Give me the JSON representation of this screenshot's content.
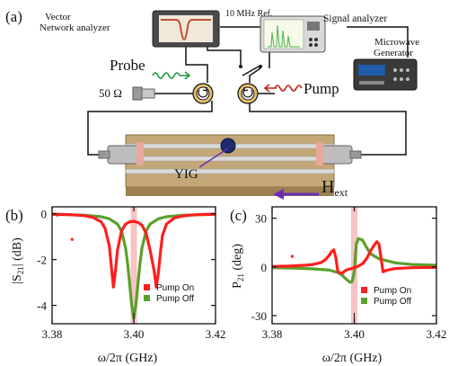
{
  "panel_a": {
    "label": "(a)",
    "vna_label_line1": "Vector",
    "vna_label_line2": "Network analyzer",
    "ref_label": "10 MHz Ref.",
    "sa_label": "Signal analyzer",
    "mw_label_line1": "Microwave",
    "mw_label_line2": "Generator",
    "probe_label": "Probe",
    "pump_label": "Pump",
    "load_label": "50 Ω",
    "yig_label": "YIG",
    "field_label": "H",
    "field_sub": "ext",
    "colors": {
      "probe": "#1a9a3a",
      "pump": "#c81e1e",
      "field_arrow": "#6a2fb0",
      "board": "#bfa57a"
    }
  },
  "chart_data": [
    {
      "type": "line",
      "panel": "(b)",
      "xlabel": "ω/2π  (GHz)",
      "ylabel_main": "|S",
      "ylabel_sub": "21",
      "ylabel_tail": "| (dB)",
      "xlim": [
        3.38,
        3.42
      ],
      "ylim": [
        -4.8,
        0.3
      ],
      "xticks": [
        3.38,
        3.4,
        3.42
      ],
      "xtick_labels": [
        "3.38",
        "3.40",
        "3.42"
      ],
      "yticks": [
        0,
        -2,
        -4
      ],
      "ytick_labels": [
        "0",
        "-2",
        "-4"
      ],
      "highlight_x": 3.4,
      "legend": [
        {
          "name": "Pump On",
          "color": "#ff1e1e"
        },
        {
          "name": "Pump Off",
          "color": "#5aa02c"
        }
      ],
      "series": [
        {
          "name": "Pump On",
          "color": "#ff1e1e",
          "x": [
            3.38,
            3.382,
            3.384,
            3.386,
            3.388,
            3.39,
            3.392,
            3.393,
            3.394,
            3.3945,
            3.395,
            3.3955,
            3.396,
            3.397,
            3.398,
            3.399,
            3.4,
            3.401,
            3.402,
            3.403,
            3.404,
            3.405,
            3.4055,
            3.406,
            3.4065,
            3.407,
            3.408,
            3.41,
            3.412,
            3.414,
            3.416,
            3.418,
            3.42
          ],
          "y": [
            -0.02,
            -0.03,
            -0.04,
            -0.06,
            -0.09,
            -0.16,
            -0.35,
            -0.65,
            -1.4,
            -2.3,
            -3.2,
            -2.5,
            -1.6,
            -0.75,
            -0.45,
            -0.35,
            -0.33,
            -0.38,
            -0.5,
            -0.85,
            -1.6,
            -2.5,
            -3.2,
            -2.6,
            -1.7,
            -0.95,
            -0.45,
            -0.18,
            -0.1,
            -0.06,
            -0.04,
            -0.03,
            -0.02
          ]
        },
        {
          "name": "Pump Off",
          "color": "#5aa02c",
          "x": [
            3.38,
            3.384,
            3.388,
            3.392,
            3.394,
            3.396,
            3.397,
            3.398,
            3.3985,
            3.399,
            3.3995,
            3.4,
            3.4005,
            3.401,
            3.4015,
            3.402,
            3.403,
            3.404,
            3.406,
            3.408,
            3.412,
            3.416,
            3.42
          ],
          "y": [
            -0.03,
            -0.04,
            -0.07,
            -0.13,
            -0.22,
            -0.45,
            -0.75,
            -1.5,
            -2.2,
            -3.1,
            -4.0,
            -4.55,
            -4.0,
            -3.1,
            -2.2,
            -1.5,
            -0.75,
            -0.45,
            -0.22,
            -0.13,
            -0.07,
            -0.04,
            -0.03
          ]
        }
      ],
      "stray_points": [
        {
          "x": 3.3813,
          "y": -0.06
        },
        {
          "x": 3.3849,
          "y": -1.12
        }
      ]
    },
    {
      "type": "line",
      "panel": "(c)",
      "xlabel": "ω/2π  (GHz)",
      "ylabel_main": "P",
      "ylabel_sub": "21",
      "ylabel_tail": " (deg)",
      "xlim": [
        3.38,
        3.42
      ],
      "ylim": [
        -35,
        37
      ],
      "xticks": [
        3.38,
        3.4,
        3.42
      ],
      "xtick_labels": [
        "3.38",
        "3.40",
        "3.42"
      ],
      "yticks": [
        30,
        0,
        -30
      ],
      "ytick_labels": [
        "30",
        "0",
        "-30"
      ],
      "highlight_x": 3.4,
      "legend": [
        {
          "name": "Pump On",
          "color": "#ff1e1e"
        },
        {
          "name": "Pump Off",
          "color": "#5aa02c"
        }
      ],
      "series": [
        {
          "name": "Pump On",
          "color": "#ff1e1e",
          "x": [
            3.38,
            3.384,
            3.388,
            3.39,
            3.392,
            3.393,
            3.394,
            3.3945,
            3.395,
            3.3955,
            3.396,
            3.397,
            3.398,
            3.399,
            3.4,
            3.401,
            3.402,
            3.403,
            3.404,
            3.405,
            3.4055,
            3.406,
            3.4065,
            3.407,
            3.408,
            3.41,
            3.414,
            3.42
          ],
          "y": [
            0.3,
            0.5,
            1.0,
            1.5,
            2.8,
            4.5,
            7.5,
            9.5,
            10.5,
            6,
            -3,
            -4,
            -2,
            -1.2,
            -0.5,
            0.5,
            2,
            5,
            10,
            14,
            15.5,
            14,
            6,
            -3,
            -2,
            -1,
            -0.5,
            -0.3
          ]
        },
        {
          "name": "Pump Off",
          "color": "#5aa02c",
          "x": [
            3.38,
            3.386,
            3.39,
            3.394,
            3.396,
            3.397,
            3.398,
            3.399,
            3.3995,
            3.4,
            3.4005,
            3.401,
            3.402,
            3.403,
            3.404,
            3.406,
            3.41,
            3.414,
            3.42
          ],
          "y": [
            -0.5,
            -0.8,
            -1.2,
            -2.0,
            -3.5,
            -5,
            -7.5,
            -9.5,
            -9,
            -3,
            14,
            17.5,
            16.5,
            12,
            8,
            5,
            2.5,
            1.5,
            1
          ]
        }
      ],
      "stray_points": [
        {
          "x": 3.3849,
          "y": 6.5
        }
      ]
    }
  ]
}
